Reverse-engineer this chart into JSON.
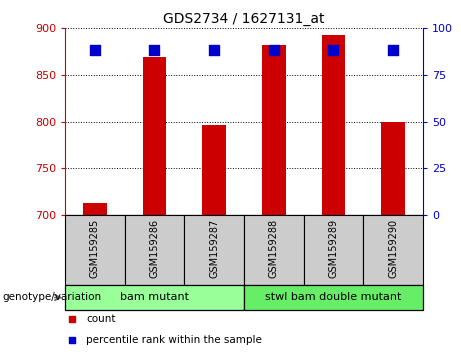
{
  "title": "GDS2734 / 1627131_at",
  "categories": [
    "GSM159285",
    "GSM159286",
    "GSM159287",
    "GSM159288",
    "GSM159289",
    "GSM159290"
  ],
  "red_values": [
    713,
    869,
    796,
    882,
    893,
    799
  ],
  "blue_values": [
    88,
    88,
    88,
    88,
    88,
    88
  ],
  "ylim_left": [
    700,
    900
  ],
  "ylim_right": [
    0,
    100
  ],
  "yticks_left": [
    700,
    750,
    800,
    850,
    900
  ],
  "yticks_right": [
    0,
    25,
    50,
    75,
    100
  ],
  "left_color": "#cc0000",
  "right_color": "#0000cc",
  "bar_width": 0.4,
  "groups": [
    {
      "label": "bam mutant",
      "indices": [
        0,
        1,
        2
      ],
      "color": "#99ff99"
    },
    {
      "label": "stwl bam double mutant",
      "indices": [
        3,
        4,
        5
      ],
      "color": "#66ee66"
    }
  ],
  "group_label": "genotype/variation",
  "legend_items": [
    {
      "label": "count",
      "color": "#cc0000"
    },
    {
      "label": "percentile rank within the sample",
      "color": "#0000cc"
    }
  ],
  "tick_area_color": "#cccccc",
  "background_color": "#ffffff",
  "blue_marker_size": 7
}
